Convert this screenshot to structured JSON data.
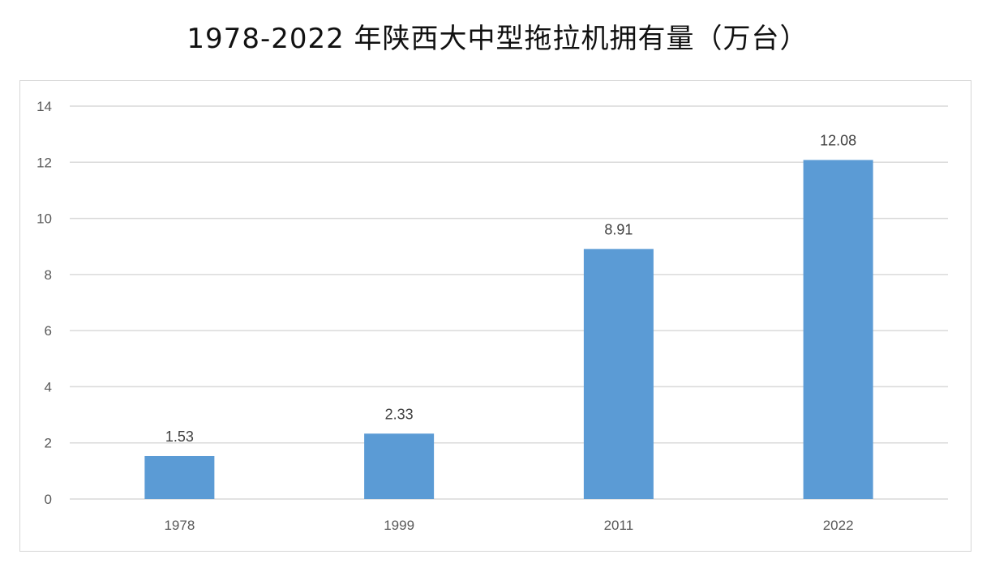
{
  "chart_data": {
    "type": "bar",
    "title": "1978-2022 年陕西大中型拖拉机拥有量（万台）",
    "categories": [
      "1978",
      "1999",
      "2011",
      "2022"
    ],
    "values": [
      1.53,
      2.33,
      8.91,
      12.08
    ],
    "data_labels": [
      "1.53",
      "2.33",
      "8.91",
      "12.08"
    ],
    "ylim": [
      0,
      14
    ],
    "yticks": [
      0,
      2,
      4,
      6,
      8,
      10,
      12,
      14
    ],
    "grid": true,
    "legend": "none",
    "bar_color": "#5b9bd5",
    "grid_color": "#d9d9d9"
  }
}
